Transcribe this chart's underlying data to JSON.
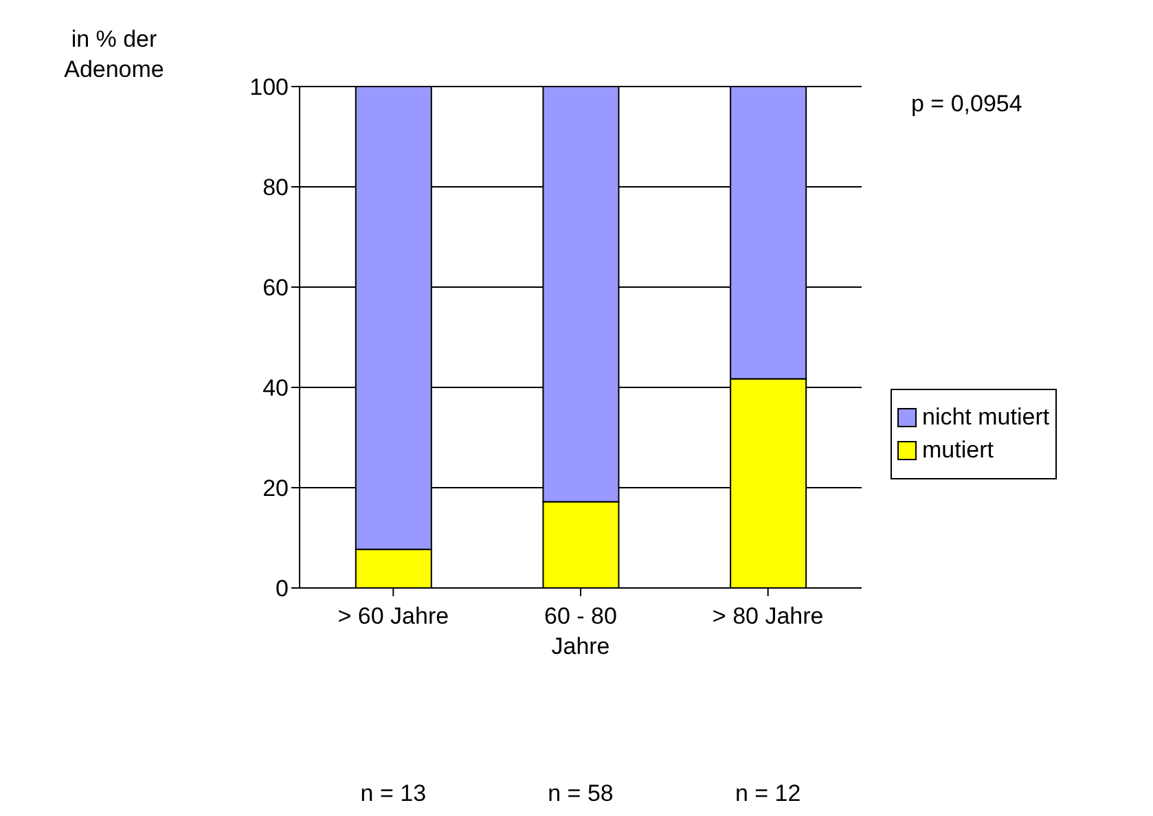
{
  "chart_data": {
    "type": "bar",
    "stacked": true,
    "ylabel": "in % der Adenome",
    "categories": [
      "> 60 Jahre",
      "60 - 80 Jahre",
      "> 80 Jahre"
    ],
    "series": [
      {
        "name": "mutiert",
        "color": "#ffff00",
        "values": [
          7.7,
          17.2,
          41.7
        ]
      },
      {
        "name": "nicht mutiert",
        "color": "#9999ff",
        "values": [
          92.3,
          82.8,
          58.3
        ]
      }
    ],
    "ylim": [
      0,
      100
    ],
    "yticks": [
      0,
      20,
      40,
      60,
      80,
      100
    ],
    "grid": "y",
    "legend": "right",
    "annotations": [
      "p = 0,0954",
      "n = 13",
      "n = 58",
      "n = 12"
    ]
  }
}
